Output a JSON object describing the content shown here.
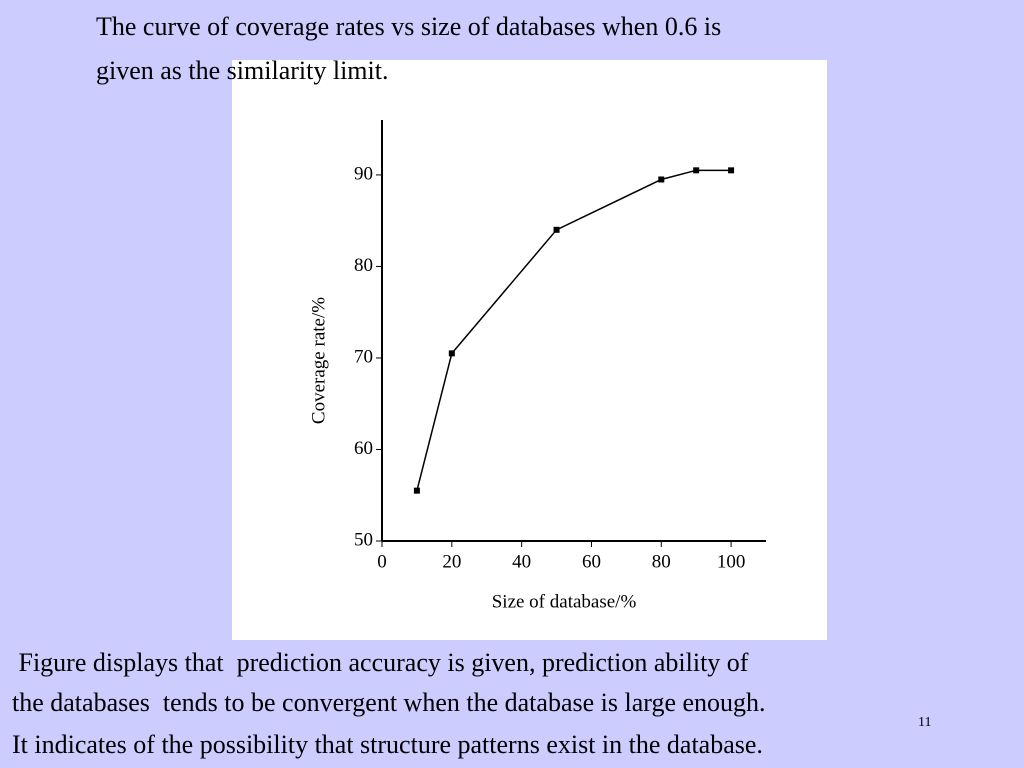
{
  "slide": {
    "title_lines": [
      "The curve of coverage rates vs size of databases when 0.6 is",
      "given as the similarity limit."
    ],
    "body_lines": [
      " Figure displays that  prediction accuracy is given, prediction ability of",
      "the databases  tends to be convergent when the database is large enough.",
      "It indicates of the possibility that structure patterns exist in the database."
    ],
    "page_number": "11"
  },
  "chart_data": {
    "type": "line",
    "x_label": "Size of database/%",
    "y_label": "Coverage rate/%",
    "x": [
      10,
      20,
      50,
      80,
      90,
      100
    ],
    "values": [
      55.5,
      70.5,
      84,
      89.5,
      90.5,
      90.5
    ],
    "color": "#000000",
    "xlim": [
      0,
      110
    ],
    "xticks": [
      0,
      20,
      40,
      60,
      80,
      100
    ],
    "ylim": [
      50,
      96
    ],
    "yticks": [
      50,
      60,
      70,
      80,
      90
    ]
  }
}
